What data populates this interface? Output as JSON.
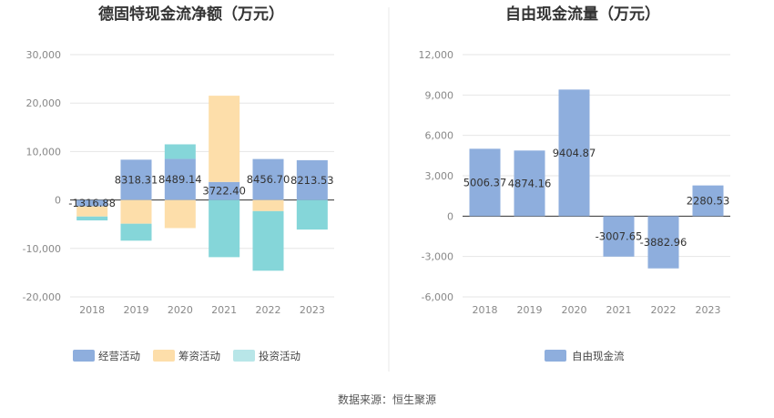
{
  "source_text": "数据来源：恒生聚源",
  "chart_data": [
    {
      "type": "bar",
      "stacked": true,
      "title": "德固特现金流净额（万元）",
      "categories": [
        "2018",
        "2019",
        "2020",
        "2021",
        "2022",
        "2023"
      ],
      "ylim": [
        -20000,
        30000
      ],
      "yticks": [
        30000,
        20000,
        10000,
        0,
        -10000,
        -20000
      ],
      "ytick_labels": [
        "30,000",
        "20,000",
        "10,000",
        "0",
        "-10,000",
        "-20,000"
      ],
      "grid": true,
      "legend_position": "bottom",
      "series": [
        {
          "name": "经营活动",
          "color": "#8eaedd",
          "values": [
            -1316.88,
            8318.31,
            8489.14,
            3722.4,
            8456.7,
            8213.53
          ]
        },
        {
          "name": "筹资活动",
          "color": "#fddeaa",
          "values": [
            -2100,
            -4900,
            -5800,
            17800,
            -2300,
            0
          ]
        },
        {
          "name": "投资活动",
          "color": "#85d6d9",
          "values": [
            -800,
            -3500,
            3000,
            -11800,
            -12300,
            -6100
          ]
        }
      ],
      "data_labels": [
        "-1316.88",
        "8318.31",
        "8489.14",
        "3722.40",
        "8456.70",
        "8213.53"
      ]
    },
    {
      "type": "bar",
      "title": "自由现金流量（万元）",
      "categories": [
        "2018",
        "2019",
        "2020",
        "2021",
        "2022",
        "2023"
      ],
      "ylim": [
        -6000,
        12000
      ],
      "yticks": [
        12000,
        9000,
        6000,
        3000,
        0,
        -3000,
        -6000
      ],
      "ytick_labels": [
        "12,000",
        "9,000",
        "6,000",
        "3,000",
        "0",
        "-3,000",
        "-6,000"
      ],
      "grid": true,
      "legend_position": "bottom",
      "series": [
        {
          "name": "自由现金流",
          "color": "#8eaedd",
          "values": [
            5006.37,
            4874.16,
            9404.87,
            -3007.65,
            -3882.96,
            2280.53
          ]
        }
      ],
      "data_labels": [
        "5006.37",
        "4874.16",
        "9404.87",
        "-3007.65",
        "-3882.96",
        "2280.53"
      ]
    }
  ]
}
